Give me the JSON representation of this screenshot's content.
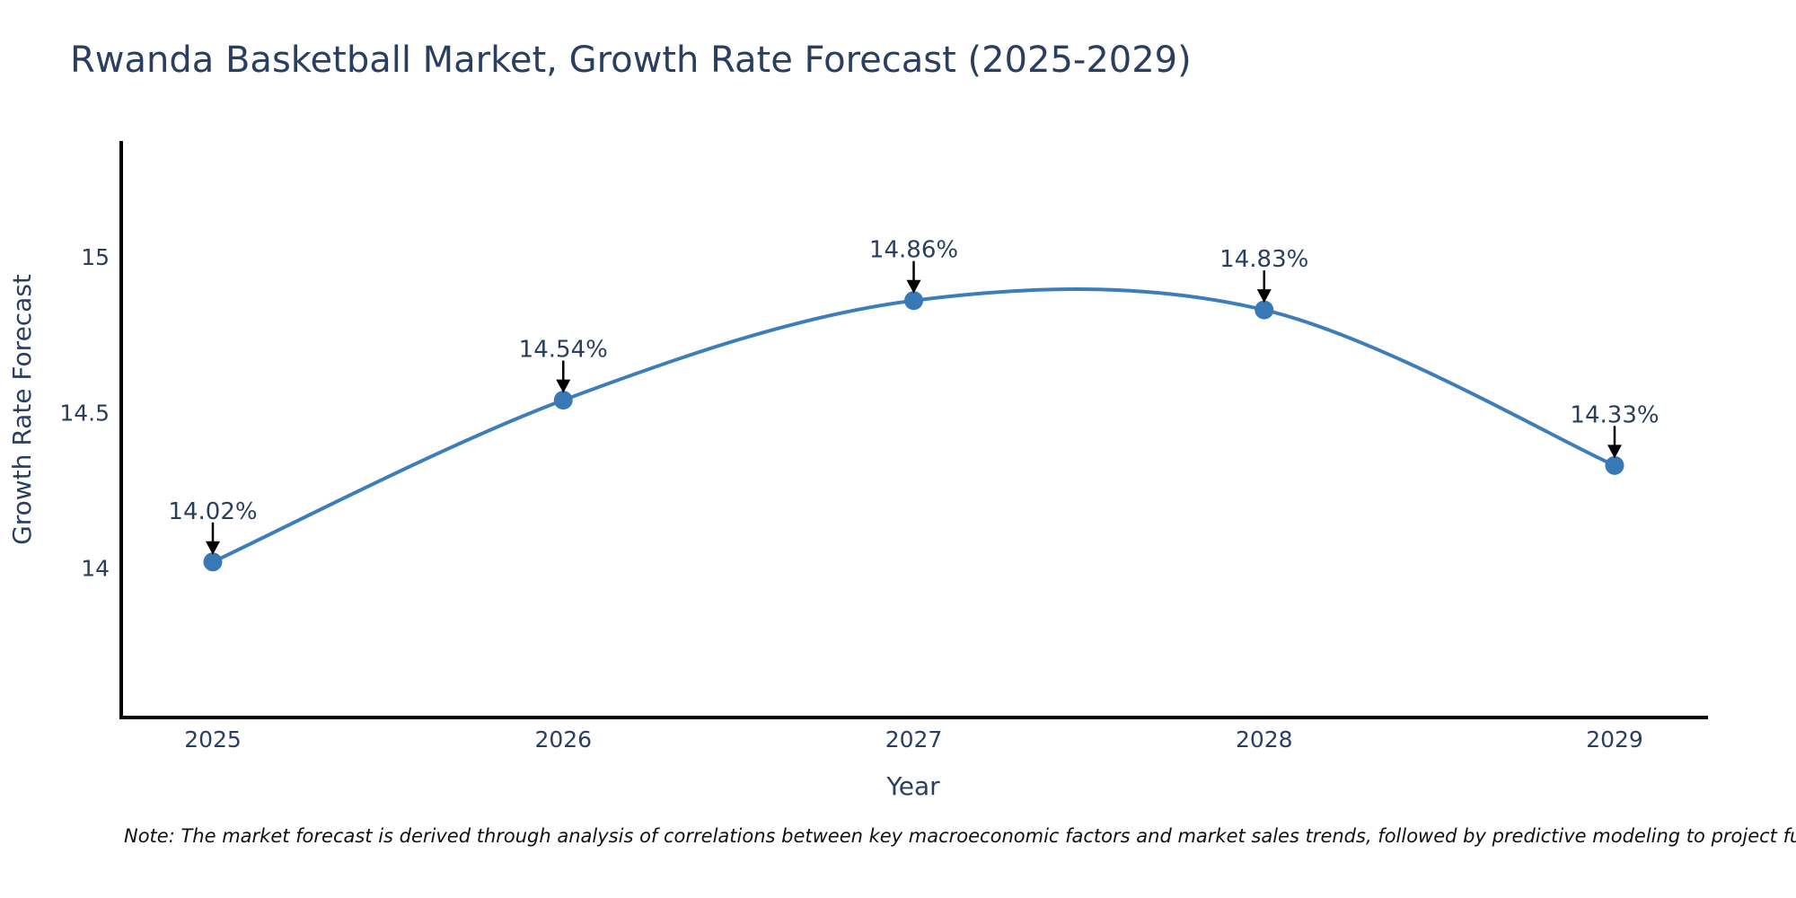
{
  "title": "Rwanda Basketball Market, Growth Rate Forecast (2025-2029)",
  "note": "Note: The market forecast is derived through analysis of correlations between key macroeconomic factors and market sales trends, followed by predictive modeling to project future sales",
  "chart_data": {
    "type": "line",
    "title": "Rwanda Basketball Market, Growth Rate Forecast (2025-2029)",
    "xlabel": "Year",
    "ylabel": "Growth Rate Forecast",
    "categories": [
      "2025",
      "2026",
      "2027",
      "2028",
      "2029"
    ],
    "values": [
      14.02,
      14.54,
      14.86,
      14.83,
      14.33
    ],
    "point_labels": [
      "14.02%",
      "14.54%",
      "14.86%",
      "14.83%",
      "14.33%"
    ],
    "yticks": [
      14,
      14.5,
      15
    ],
    "ytick_labels": [
      "14",
      "14.5",
      "15"
    ],
    "ylim": [
      13.52,
      15.37
    ],
    "grid": false,
    "legend": null,
    "line_color": "#3d7eba",
    "marker_color": "#3879b5",
    "axis_color": "#000000",
    "label_color": "#2a3f5f",
    "annotation_arrow_color": "#000000",
    "curve": "smooth"
  }
}
